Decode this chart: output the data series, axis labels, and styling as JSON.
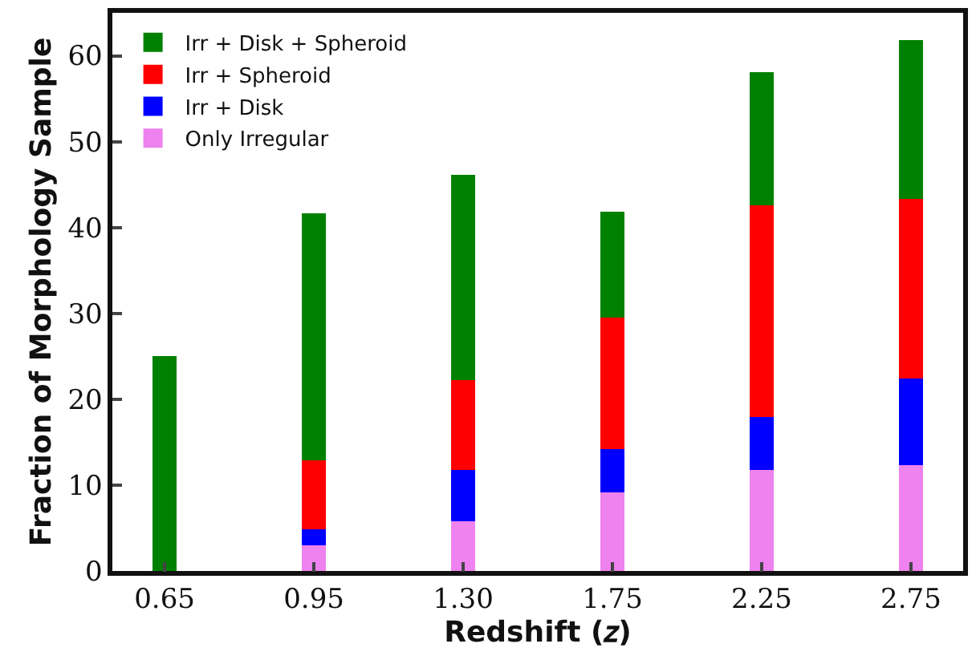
{
  "chart_data": {
    "type": "bar",
    "stacked": true,
    "xlabel": "Redshift (𝑧)",
    "ylabel": "Fraction of Morphology Sample",
    "categories": [
      "0.65",
      "0.95",
      "1.30",
      "1.75",
      "2.25",
      "2.75"
    ],
    "series": [
      {
        "name": "Only Irregular",
        "color": "#ee82ee",
        "values": [
          0,
          3.0,
          5.8,
          9.1,
          11.7,
          12.3
        ]
      },
      {
        "name": "Irr + Disk",
        "color": "#0000ff",
        "values": [
          0,
          1.9,
          5.9,
          5.1,
          6.2,
          10.2
        ]
      },
      {
        "name": "Irr + Spheroid",
        "color": "#ff0000",
        "values": [
          0,
          7.9,
          10.5,
          15.3,
          24.6,
          20.8
        ]
      },
      {
        "name": "Irr + Disk + Spheroid",
        "color": "#008000",
        "values": [
          25,
          28.9,
          24.0,
          12.4,
          15.6,
          18.5
        ]
      }
    ],
    "ylim": [
      0,
      65
    ],
    "yticks": [
      0,
      10,
      20,
      30,
      40,
      50,
      60
    ],
    "grid": false,
    "legend": "top left"
  }
}
